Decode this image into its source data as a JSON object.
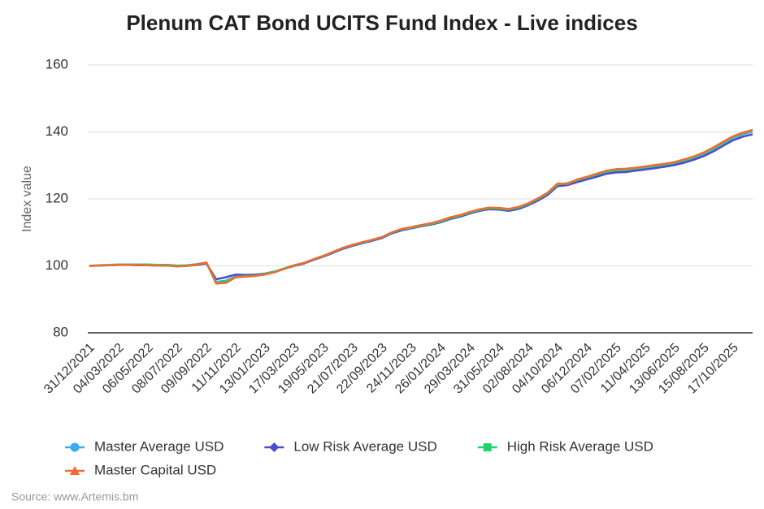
{
  "chart_data": {
    "type": "line",
    "title": "Plenum CAT Bond UCITS Fund Index - Live indices",
    "y_label": "Index value",
    "source": "Source: www.Artemis.bm",
    "categories": [
      "31/12/2021",
      null,
      null,
      "04/03/2022",
      null,
      null,
      "06/05/2022",
      null,
      null,
      "08/07/2022",
      null,
      null,
      "09/09/2022",
      null,
      null,
      "11/11/2022",
      null,
      null,
      "13/01/2023",
      null,
      null,
      "17/03/2023",
      null,
      null,
      "19/05/2023",
      null,
      null,
      "21/07/2023",
      null,
      null,
      "22/09/2023",
      null,
      null,
      "24/11/2023",
      null,
      null,
      "26/01/2024",
      null,
      null,
      "29/03/2024",
      null,
      null,
      "31/05/2024",
      null,
      null,
      "02/08/2024",
      null,
      null,
      "04/10/2024",
      null,
      null,
      "06/12/2024",
      null,
      null,
      "07/02/2025",
      null,
      null,
      "11/04/2025",
      null,
      null,
      "13/06/2025",
      null,
      null,
      "15/08/2025",
      null,
      null,
      "17/10/2025",
      null,
      null
    ],
    "series": [
      {
        "name": "Master Average USD",
        "color": "#3ca9f0",
        "marker": "circle",
        "values": [
          100.0,
          100.1,
          100.2,
          100.3,
          100.3,
          100.3,
          100.3,
          100.2,
          100.2,
          100.0,
          100.1,
          100.4,
          100.9,
          95.2,
          95.6,
          96.8,
          96.9,
          97.1,
          97.5,
          98.2,
          99.2,
          100.1,
          100.8,
          101.9,
          102.9,
          104.0,
          105.2,
          106.1,
          106.9,
          107.6,
          108.4,
          109.8,
          110.8,
          111.4,
          112.0,
          112.5,
          113.2,
          114.2,
          114.9,
          115.8,
          116.6,
          117.1,
          117.0,
          116.7,
          117.3,
          118.4,
          119.9,
          121.6,
          124.3,
          124.6,
          125.5,
          126.3,
          127.1,
          128.0,
          128.4,
          128.5,
          128.9,
          129.3,
          129.7,
          130.1,
          130.6,
          131.4,
          132.3,
          133.4,
          134.9,
          136.6,
          138.2,
          139.3,
          140.1
        ]
      },
      {
        "name": "Low Risk Average USD",
        "color": "#4a4ec6",
        "marker": "diamond",
        "values": [
          100.0,
          100.1,
          100.2,
          100.3,
          100.3,
          100.2,
          100.2,
          100.1,
          100.1,
          99.9,
          100.0,
          100.3,
          100.7,
          96.0,
          96.6,
          97.4,
          97.3,
          97.4,
          97.7,
          98.3,
          99.2,
          100.0,
          100.7,
          101.8,
          102.8,
          103.9,
          105.1,
          106.0,
          106.8,
          107.5,
          108.3,
          109.7,
          110.6,
          111.2,
          111.8,
          112.3,
          113.0,
          114.0,
          114.7,
          115.6,
          116.4,
          116.9,
          116.8,
          116.4,
          117.0,
          118.1,
          119.5,
          121.2,
          123.8,
          124.1,
          125.0,
          125.8,
          126.6,
          127.5,
          127.9,
          128.0,
          128.4,
          128.8,
          129.2,
          129.6,
          130.1,
          130.8,
          131.7,
          132.8,
          134.2,
          135.9,
          137.5,
          138.6,
          139.3
        ]
      },
      {
        "name": "High Risk Average USD",
        "color": "#1fd66e",
        "marker": "square",
        "values": [
          100.0,
          100.2,
          100.3,
          100.4,
          100.4,
          100.4,
          100.4,
          100.3,
          100.3,
          100.1,
          100.2,
          100.5,
          101.0,
          95.0,
          95.4,
          96.7,
          96.9,
          97.1,
          97.6,
          98.3,
          99.3,
          100.2,
          100.9,
          102.0,
          103.0,
          104.1,
          105.3,
          106.2,
          107.0,
          107.7,
          108.5,
          109.9,
          110.9,
          111.4,
          112.0,
          112.5,
          113.2,
          114.3,
          115.0,
          115.9,
          116.7,
          117.2,
          117.1,
          116.8,
          117.4,
          118.5,
          120.0,
          121.7,
          124.3,
          124.7,
          125.6,
          126.4,
          127.3,
          128.2,
          128.6,
          128.7,
          129.1,
          129.5,
          129.9,
          130.3,
          130.8,
          131.6,
          132.5,
          133.6,
          135.1,
          136.8,
          138.5,
          139.6,
          140.4
        ]
      },
      {
        "name": "Master Capital USD",
        "color": "#f26a30",
        "marker": "triangle",
        "values": [
          100.0,
          100.1,
          100.2,
          100.3,
          100.3,
          100.3,
          100.2,
          100.1,
          100.1,
          99.8,
          100.0,
          100.4,
          101.0,
          94.7,
          94.9,
          96.6,
          96.8,
          97.0,
          97.4,
          98.1,
          99.1,
          100.1,
          100.9,
          102.0,
          103.0,
          104.2,
          105.4,
          106.3,
          107.1,
          107.8,
          108.6,
          110.0,
          111.0,
          111.6,
          112.2,
          112.7,
          113.5,
          114.5,
          115.2,
          116.1,
          116.9,
          117.4,
          117.3,
          117.0,
          117.6,
          118.7,
          120.2,
          121.9,
          124.6,
          124.4,
          125.8,
          126.6,
          127.5,
          128.4,
          128.9,
          129.0,
          129.3,
          129.7,
          130.1,
          130.5,
          131.0,
          131.8,
          132.7,
          133.9,
          135.4,
          137.1,
          138.7,
          139.8,
          140.6
        ]
      }
    ],
    "ylim": [
      80,
      160
    ],
    "yticks": [
      80,
      100,
      120,
      140,
      160
    ],
    "grid": true
  }
}
